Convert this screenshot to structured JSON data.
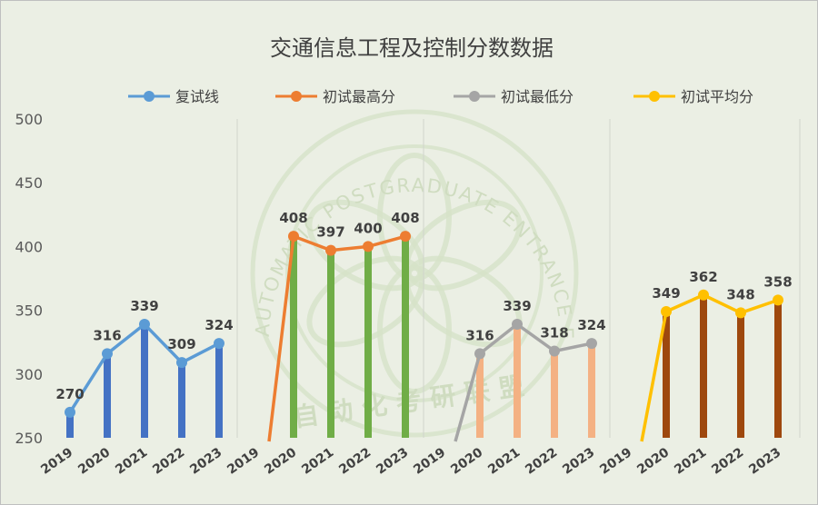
{
  "chart_data": {
    "type": "line",
    "title": "交通信息工程及控制分数数据",
    "ylim": [
      250,
      500
    ],
    "yticks": [
      250,
      300,
      350,
      400,
      450,
      500
    ],
    "grid": false,
    "legend_position": "top",
    "watermark": [
      "AUTOMATIC POSTGRADUATE ENTRANCE EXAMINATION ALLIANCE",
      "自动化考研联盟"
    ],
    "panels": [
      {
        "name": "复试线",
        "color": "#5b9bd5",
        "bar_color": "#4472c4",
        "x": [
          "2019",
          "2020",
          "2021",
          "2022",
          "2023"
        ],
        "values": [
          270,
          316,
          339,
          309,
          324
        ]
      },
      {
        "name": "初试最高分",
        "color": "#ed7d31",
        "bar_color": "#70ad47",
        "x": [
          "2019",
          "2020",
          "2021",
          "2022",
          "2023"
        ],
        "values": [
          null,
          408,
          397,
          400,
          408
        ]
      },
      {
        "name": "初试最低分",
        "color": "#a5a5a5",
        "bar_color": "#f4b183",
        "x": [
          "2019",
          "2020",
          "2021",
          "2022",
          "2023"
        ],
        "values": [
          null,
          316,
          339,
          318,
          324
        ]
      },
      {
        "name": "初试平均分",
        "color": "#ffc000",
        "bar_color": "#9e480e",
        "x": [
          "2019",
          "2020",
          "2021",
          "2022",
          "2023"
        ],
        "values": [
          null,
          349,
          362,
          348,
          358
        ]
      }
    ]
  }
}
